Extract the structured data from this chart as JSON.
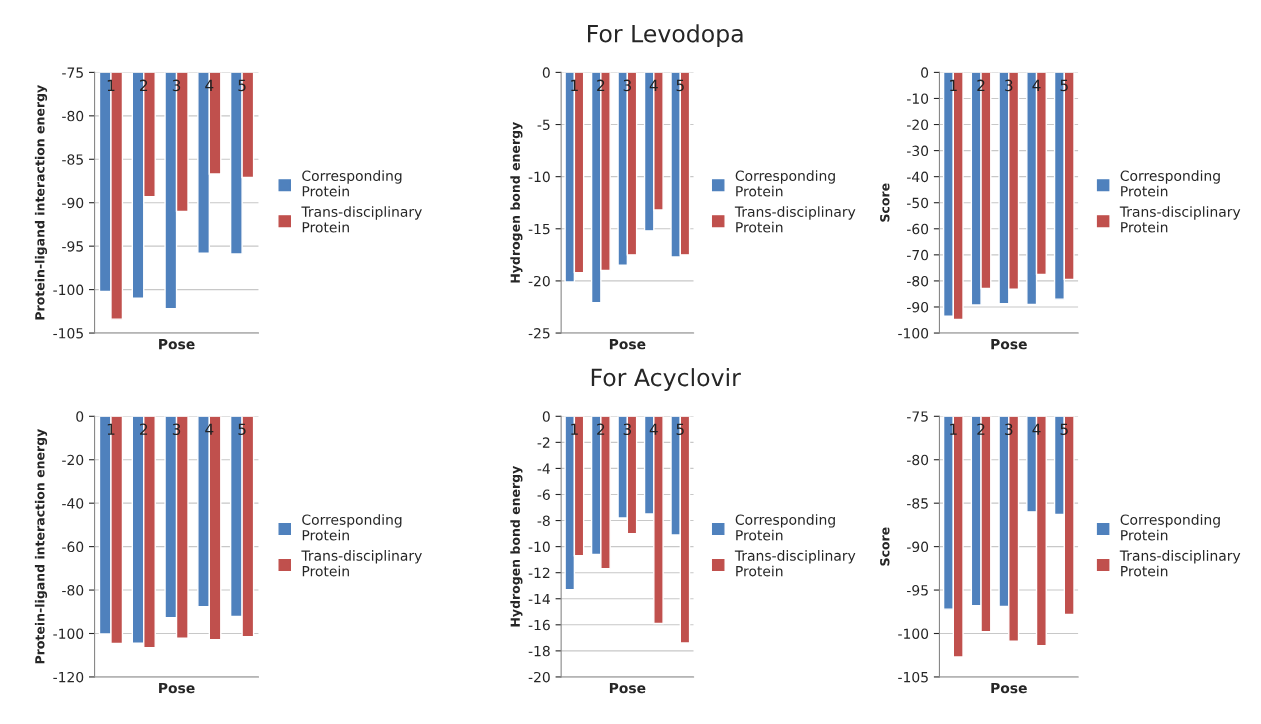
{
  "chart_data": [
    {
      "type": "bar",
      "ylabel": "Protein-ligand interaction energy",
      "xlabel": "Pose",
      "categories": [
        "1",
        "2",
        "3",
        "4",
        "5"
      ],
      "ylim": [
        -105,
        -75
      ],
      "yticks": [
        -105,
        -100,
        -95,
        -90,
        -85,
        -80,
        -75
      ],
      "grid": "y",
      "legend": "right",
      "series": [
        {
          "name": "Corresponding Protein",
          "color": "#4f81bd",
          "values": [
            -100.2,
            -101.0,
            -102.2,
            -95.8,
            -95.9
          ]
        },
        {
          "name": "Trans-disciplinary Protein",
          "color": "#c0504d",
          "values": [
            -103.4,
            -89.3,
            -91.0,
            -86.7,
            -87.1
          ]
        }
      ]
    },
    {
      "type": "bar",
      "title": "For Levodopa",
      "ylabel": "Hydrogen bond energy",
      "xlabel": "Pose",
      "categories": [
        "1",
        "2",
        "3",
        "4",
        "5"
      ],
      "ylim": [
        -25,
        0
      ],
      "yticks": [
        -25,
        -20,
        -15,
        -10,
        -5,
        0
      ],
      "grid": "y",
      "legend": "right",
      "series": [
        {
          "name": "Corresponding Protein",
          "color": "#4f81bd",
          "values": [
            -20.1,
            -22.1,
            -18.5,
            -15.2,
            -17.7
          ]
        },
        {
          "name": "Trans-disciplinary Protein",
          "color": "#c0504d",
          "values": [
            -19.2,
            -19.0,
            -17.5,
            -13.2,
            -17.5
          ]
        }
      ]
    },
    {
      "type": "bar",
      "ylabel": "Score",
      "xlabel": "Pose",
      "categories": [
        "1",
        "2",
        "3",
        "4",
        "5"
      ],
      "ylim": [
        -100,
        0
      ],
      "yticks": [
        -100,
        -90,
        -80,
        -70,
        -60,
        -50,
        -40,
        -30,
        -20,
        -10,
        0
      ],
      "grid": "y",
      "legend": "right",
      "series": [
        {
          "name": "Corresponding Protein",
          "color": "#4f81bd",
          "values": [
            -93.5,
            -89.2,
            -88.7,
            -89.0,
            -87.0
          ]
        },
        {
          "name": "Trans-disciplinary Protein",
          "color": "#c0504d",
          "values": [
            -94.8,
            -82.9,
            -83.2,
            -77.5,
            -79.4
          ]
        }
      ]
    },
    {
      "type": "bar",
      "ylabel": "Protein-ligand interaction energy",
      "xlabel": "Pose",
      "categories": [
        "1",
        "2",
        "3",
        "4",
        "5"
      ],
      "ylim": [
        -120,
        0
      ],
      "yticks": [
        -120,
        -100,
        -80,
        -60,
        -40,
        -20,
        0
      ],
      "grid": "y",
      "legend": "right",
      "series": [
        {
          "name": "Corresponding Protein",
          "color": "#4f81bd",
          "values": [
            -100.2,
            -104.5,
            -92.7,
            -87.7,
            -92.2
          ]
        },
        {
          "name": "Trans-disciplinary Protein",
          "color": "#c0504d",
          "values": [
            -104.6,
            -106.5,
            -102.2,
            -102.9,
            -101.5
          ]
        }
      ]
    },
    {
      "type": "bar",
      "title": "For Acyclovir",
      "ylabel": "Hydrogen bond energy",
      "xlabel": "Pose",
      "categories": [
        "1",
        "2",
        "3",
        "4",
        "5"
      ],
      "ylim": [
        -20,
        0
      ],
      "yticks": [
        -20,
        -18,
        -16,
        -14,
        -12,
        -10,
        -8,
        -6,
        -4,
        -2,
        0
      ],
      "grid": "y",
      "legend": "right",
      "series": [
        {
          "name": "Corresponding Protein",
          "color": "#4f81bd",
          "values": [
            -13.3,
            -10.6,
            -7.8,
            -7.5,
            -9.1
          ]
        },
        {
          "name": "Trans-disciplinary Protein",
          "color": "#c0504d",
          "values": [
            -10.7,
            -11.7,
            -9.0,
            -15.9,
            -17.4
          ]
        }
      ]
    },
    {
      "type": "bar",
      "ylabel": "Score",
      "xlabel": "Pose",
      "categories": [
        "1",
        "2",
        "3",
        "4",
        "5"
      ],
      "ylim": [
        -105,
        -75
      ],
      "yticks": [
        -105,
        -100,
        -95,
        -90,
        -85,
        -80,
        -75
      ],
      "grid": "y",
      "legend": "right",
      "series": [
        {
          "name": "Corresponding Protein",
          "color": "#4f81bd",
          "values": [
            -97.2,
            -96.8,
            -96.9,
            -86.0,
            -86.3
          ]
        },
        {
          "name": "Trans-disciplinary Protein",
          "color": "#c0504d",
          "values": [
            -102.7,
            -99.8,
            -100.9,
            -101.4,
            -97.8
          ]
        }
      ]
    }
  ]
}
